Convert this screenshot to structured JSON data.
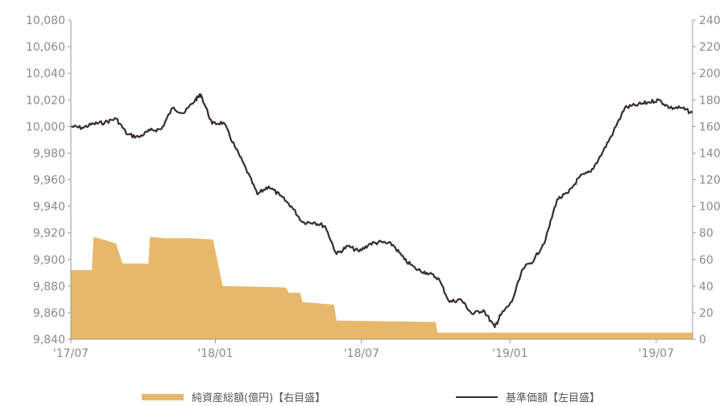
{
  "chart_data": {
    "type": "line",
    "title": "",
    "colors": {
      "nav": "#3a2c2c",
      "assets": "#e8b86a",
      "axis": "#9a9a9a",
      "text": "#8a8a8a"
    },
    "left_axis": {
      "ylim": [
        9840,
        10080
      ],
      "ticks": [
        "10,080",
        "10,060",
        "10,040",
        "10,020",
        "10,000",
        "9,980",
        "9,960",
        "9,940",
        "9,920",
        "9,900",
        "9,880",
        "9,860",
        "9,840"
      ]
    },
    "right_axis": {
      "ylim": [
        0,
        240
      ],
      "ticks": [
        "240",
        "220",
        "200",
        "180",
        "160",
        "140",
        "120",
        "100",
        "80",
        "60",
        "40",
        "20",
        "0"
      ]
    },
    "x_axis": {
      "xlim": [
        "2017-07-06",
        "2019-08-15"
      ],
      "ticks": [
        {
          "date": "2017-07-01",
          "label": "'17/07"
        },
        {
          "date": "2018-01-01",
          "label": "'18/01"
        },
        {
          "date": "2018-07-01",
          "label": "'18/07"
        },
        {
          "date": "2019-01-01",
          "label": "'19/01"
        },
        {
          "date": "2019-07-01",
          "label": "'19/07"
        }
      ]
    },
    "series": [
      {
        "name": "基準価額【左目盛】",
        "kind": "line",
        "axis": "left",
        "points": [
          [
            "2017-07-06",
            10000
          ],
          [
            "2017-07-20",
            9999
          ],
          [
            "2017-08-03",
            10002
          ],
          [
            "2017-08-17",
            10003
          ],
          [
            "2017-08-31",
            10006
          ],
          [
            "2017-09-14",
            9994
          ],
          [
            "2017-09-28",
            9992
          ],
          [
            "2017-10-12",
            9997
          ],
          [
            "2017-10-26",
            9998
          ],
          [
            "2017-11-09",
            10014
          ],
          [
            "2017-11-23",
            10010
          ],
          [
            "2017-12-07",
            10020
          ],
          [
            "2017-12-14",
            10024
          ],
          [
            "2017-12-28",
            10002
          ],
          [
            "2018-01-11",
            10003
          ],
          [
            "2018-01-25",
            9985
          ],
          [
            "2018-02-08",
            9968
          ],
          [
            "2018-02-22",
            9949
          ],
          [
            "2018-03-08",
            9955
          ],
          [
            "2018-03-22",
            9948
          ],
          [
            "2018-04-05",
            9940
          ],
          [
            "2018-04-19",
            9928
          ],
          [
            "2018-05-03",
            9928
          ],
          [
            "2018-05-17",
            9925
          ],
          [
            "2018-05-31",
            9904
          ],
          [
            "2018-06-14",
            9910
          ],
          [
            "2018-06-28",
            9906
          ],
          [
            "2018-07-12",
            9912
          ],
          [
            "2018-07-26",
            9913
          ],
          [
            "2018-08-09",
            9911
          ],
          [
            "2018-08-23",
            9900
          ],
          [
            "2018-09-06",
            9893
          ],
          [
            "2018-09-20",
            9890
          ],
          [
            "2018-10-04",
            9886
          ],
          [
            "2018-10-18",
            9868
          ],
          [
            "2018-11-01",
            9870
          ],
          [
            "2018-11-15",
            9859
          ],
          [
            "2018-11-29",
            9862
          ],
          [
            "2018-12-13",
            9849
          ],
          [
            "2018-12-20",
            9858
          ],
          [
            "2019-01-03",
            9868
          ],
          [
            "2019-01-17",
            9893
          ],
          [
            "2019-01-31",
            9900
          ],
          [
            "2019-02-14",
            9915
          ],
          [
            "2019-02-28",
            9945
          ],
          [
            "2019-03-14",
            9950
          ],
          [
            "2019-03-28",
            9962
          ],
          [
            "2019-04-11",
            9966
          ],
          [
            "2019-04-25",
            9980
          ],
          [
            "2019-05-09",
            9996
          ],
          [
            "2019-05-23",
            10014
          ],
          [
            "2019-06-06",
            10016
          ],
          [
            "2019-06-20",
            10018
          ],
          [
            "2019-07-04",
            10020
          ],
          [
            "2019-07-18",
            10014
          ],
          [
            "2019-08-01",
            10014
          ],
          [
            "2019-08-15",
            10010
          ]
        ]
      },
      {
        "name": "純資産総額(億円)【右目盛】",
        "kind": "area",
        "axis": "right",
        "points": [
          [
            "2017-07-06",
            52
          ],
          [
            "2017-08-01",
            52
          ],
          [
            "2017-08-03",
            77
          ],
          [
            "2017-08-15",
            75
          ],
          [
            "2017-08-31",
            72
          ],
          [
            "2017-09-08",
            57
          ],
          [
            "2017-10-05",
            57
          ],
          [
            "2017-10-10",
            57
          ],
          [
            "2017-10-12",
            77
          ],
          [
            "2017-10-30",
            76
          ],
          [
            "2017-12-01",
            76
          ],
          [
            "2017-12-29",
            75
          ],
          [
            "2018-01-10",
            40
          ],
          [
            "2018-03-29",
            39
          ],
          [
            "2018-04-02",
            35
          ],
          [
            "2018-04-16",
            35
          ],
          [
            "2018-04-19",
            28
          ],
          [
            "2018-05-28",
            26
          ],
          [
            "2018-05-31",
            14
          ],
          [
            "2018-10-01",
            13
          ],
          [
            "2018-10-03",
            5
          ],
          [
            "2019-08-15",
            5
          ]
        ]
      }
    ],
    "legend": [
      "純資産総額(億円)【右目盛】",
      "基準価額【左目盛】"
    ]
  }
}
